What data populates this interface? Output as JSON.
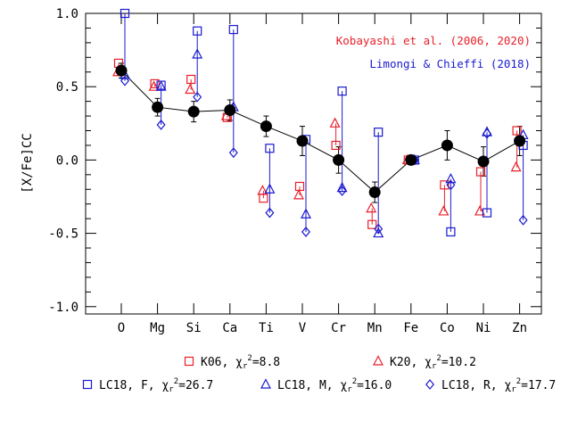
{
  "chart_data": {
    "type": "scatter",
    "ylabel": "[X/Fe]CC",
    "categories": [
      "O",
      "Mg",
      "Si",
      "Ca",
      "Ti",
      "V",
      "Cr",
      "Mn",
      "Fe",
      "Co",
      "Ni",
      "Zn"
    ],
    "ylim": [
      -1.05,
      1.0
    ],
    "yticks": [
      "1.0",
      "0.5",
      "0.0",
      "-0.5",
      "-1.0"
    ],
    "ytick_values": [
      1.0,
      0.5,
      0.0,
      -0.5,
      -1.0
    ],
    "legend_placement": "top-right",
    "annotations": [
      {
        "text": "Kobayashi et al. (2006, 2020)",
        "color": "#e8202a"
      },
      {
        "text": "Limongi & Chieffi (2018)",
        "color": "#1a1ad0"
      }
    ],
    "colors": {
      "observed": "#000000",
      "kobayashi": "#e8202a",
      "limongi": "#1a1ad0"
    },
    "series": [
      {
        "name": "Observed",
        "marker": "filled-circle",
        "values": [
          0.61,
          0.36,
          0.33,
          0.34,
          0.23,
          0.13,
          0.0,
          -0.22,
          0.0,
          0.1,
          -0.01,
          0.13
        ],
        "errors": [
          0.05,
          0.06,
          0.07,
          0.07,
          0.07,
          0.1,
          0.09,
          0.07,
          0.0,
          0.1,
          0.1,
          0.1
        ]
      },
      {
        "name": "K06",
        "chi2": "8.8",
        "marker": "square",
        "color": "#e8202a",
        "values": [
          0.66,
          0.52,
          0.55,
          0.29,
          -0.26,
          -0.18,
          0.1,
          -0.44,
          0.0,
          -0.17,
          -0.08,
          0.2
        ]
      },
      {
        "name": "K20",
        "chi2": "10.2",
        "marker": "triangle",
        "color": "#e8202a",
        "values": [
          0.6,
          0.5,
          0.48,
          0.3,
          -0.21,
          -0.24,
          0.25,
          -0.33,
          0.0,
          -0.35,
          -0.35,
          -0.05
        ]
      },
      {
        "name": "LC18, F",
        "chi2": "26.7",
        "marker": "square",
        "color": "#1a1ad0",
        "values": [
          1.0,
          0.51,
          0.88,
          0.89,
          0.08,
          0.14,
          0.47,
          0.19,
          0.0,
          -0.49,
          -0.36,
          0.1
        ]
      },
      {
        "name": "LC18, M",
        "chi2": "16.0",
        "marker": "triangle",
        "color": "#1a1ad0",
        "values": [
          0.58,
          0.5,
          0.72,
          0.36,
          -0.2,
          -0.37,
          -0.19,
          -0.5,
          0.0,
          -0.13,
          0.19,
          0.17
        ]
      },
      {
        "name": "LC18, R",
        "chi2": "17.7",
        "marker": "diamond",
        "color": "#1a1ad0",
        "values": [
          0.54,
          0.24,
          0.43,
          0.05,
          -0.36,
          -0.49,
          -0.21,
          -0.47,
          0.0,
          -0.17,
          0.18,
          -0.41
        ]
      }
    ]
  }
}
